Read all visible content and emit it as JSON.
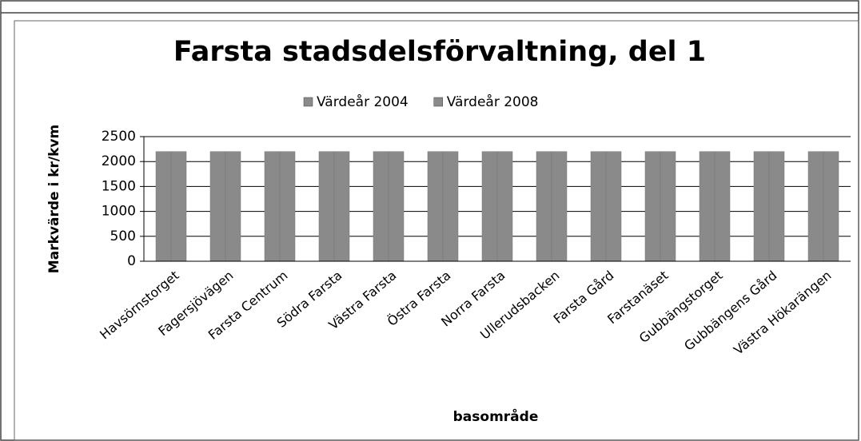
{
  "chart_data": {
    "type": "bar",
    "title": "Farsta stadsdelsförvaltning, del 1",
    "x_label": "basområde",
    "y_label": "Markvärde  i kr/kvm",
    "categories": [
      "Havsörnstorget",
      "Fagersjövägen",
      "Farsta Centrum",
      "Södra Farsta",
      "Västra Farsta",
      "Östra Farsta",
      "Norra Farsta",
      "Ullerudsbacken",
      "Farsta Gård",
      "Farstanäset",
      "Gubbängstorget",
      "Gubbängens Gård",
      "Västra Hökarängen"
    ],
    "series": [
      {
        "name": "Värdeår 2004",
        "color": "#8a8a8a",
        "values": [
          2200,
          2200,
          2200,
          2200,
          2200,
          2200,
          2200,
          2200,
          2200,
          2200,
          2200,
          2200,
          2200
        ]
      },
      {
        "name": "Värdeår 2008",
        "color": "#8a8a8a",
        "values": [
          2200,
          2200,
          2200,
          2200,
          2200,
          2200,
          2200,
          2200,
          2200,
          2200,
          2200,
          2200,
          2200
        ]
      }
    ],
    "ylim": [
      0,
      2500
    ],
    "yticks": [
      0,
      500,
      1000,
      1500,
      2000,
      2500
    ],
    "grid": true,
    "legend": "top"
  }
}
